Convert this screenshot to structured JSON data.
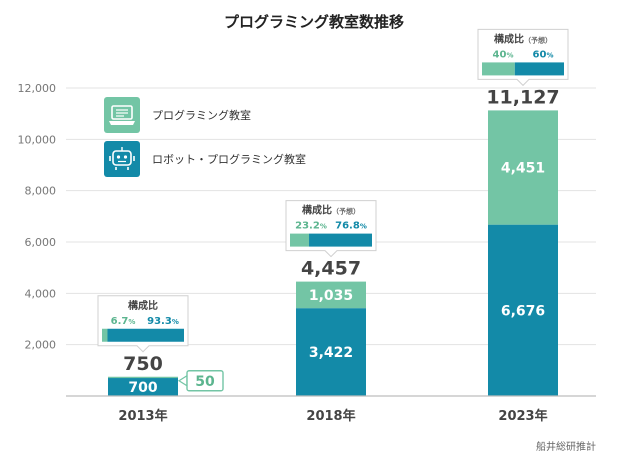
{
  "chart_data": {
    "type": "bar",
    "stacked": true,
    "title": "プログラミング教室数推移",
    "categories": [
      "2013年",
      "2018年",
      "2023年"
    ],
    "series": [
      {
        "name": "ロボット・プログラミング教室",
        "values": [
          700,
          3422,
          6676
        ],
        "labels": [
          "700",
          "3,422",
          "6,676"
        ],
        "color": "#138aa8"
      },
      {
        "name": "プログラミング教室",
        "values": [
          50,
          1035,
          4451
        ],
        "labels": [
          "50",
          "1,035",
          "4,451"
        ],
        "color": "#73c5a5"
      }
    ],
    "totals": [
      750,
      4457,
      11127
    ],
    "total_labels": [
      "750",
      "4,457",
      "11,127"
    ],
    "ylim": [
      0,
      12000
    ],
    "yticks": [
      2000,
      4000,
      6000,
      8000,
      10000,
      12000
    ],
    "ytick_labels": [
      "2,000",
      "4,000",
      "6,000",
      "8,000",
      "10,000",
      "12,000"
    ],
    "legend_position": "top-left",
    "composition": [
      {
        "title": "構成比",
        "note": "",
        "light": "6.7",
        "dark": "93.3",
        "light_share": 0.067
      },
      {
        "title": "構成比",
        "note": "（予想）",
        "light": "23.2",
        "dark": "76.8",
        "light_share": 0.232
      },
      {
        "title": "構成比",
        "note": "（予想）",
        "light": "40",
        "dark": "60",
        "light_share": 0.4
      }
    ],
    "pct_unit": "%",
    "source": "船井総研推計"
  },
  "legend": {
    "items": [
      {
        "label": "プログラミング教室",
        "icon": "laptop-icon",
        "color": "#73c5a5"
      },
      {
        "label": "ロボット・プログラミング教室",
        "icon": "robot-icon",
        "color": "#138aa8"
      }
    ]
  }
}
